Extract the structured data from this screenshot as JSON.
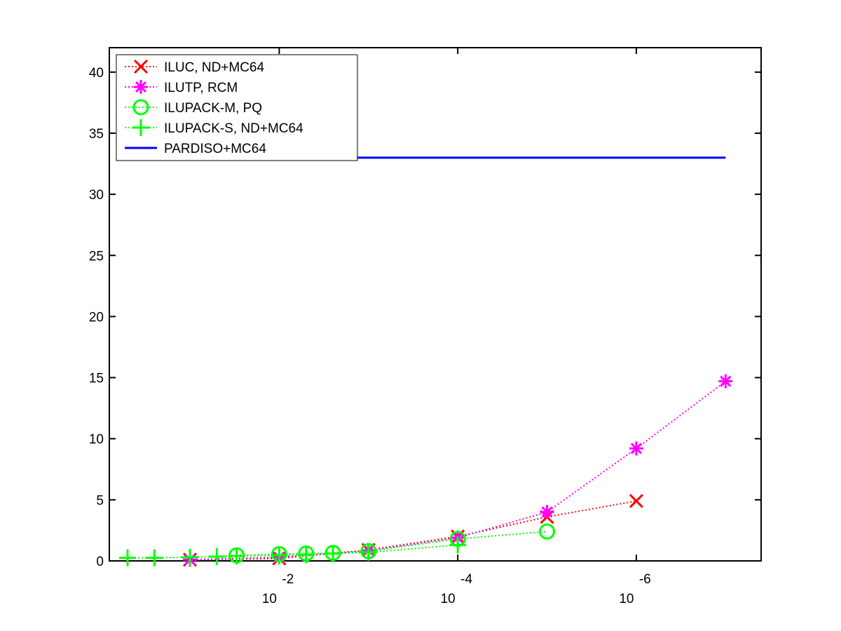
{
  "chart_data": {
    "type": "line",
    "title": "",
    "xlabel": "",
    "ylabel": "",
    "x_scale": "log-reversed",
    "xlim": [
      0.8,
      4e-08
    ],
    "ylim": [
      0,
      42
    ],
    "yticks": [
      0,
      5,
      10,
      15,
      20,
      25,
      30,
      35,
      40
    ],
    "xticks": [
      {
        "value": 0.01,
        "base": "10",
        "exponent": "-2"
      },
      {
        "value": 0.0001,
        "base": "10",
        "exponent": "-4"
      },
      {
        "value": 1e-06,
        "base": "10",
        "exponent": "-6"
      }
    ],
    "grid": false,
    "legend_position": "top-left",
    "series": [
      {
        "name": "ILUC,  ND+MC64",
        "color": "#ff0000",
        "marker": "x",
        "line": "dotted",
        "points": [
          [
            0.1,
            0.1
          ],
          [
            0.01,
            0.2
          ],
          [
            0.001,
            0.9
          ],
          [
            0.0001,
            2.0
          ],
          [
            1e-05,
            3.6
          ],
          [
            1e-06,
            4.9
          ]
        ]
      },
      {
        "name": "ILUTP, RCM",
        "color": "#ff00ff",
        "marker": "asterisk",
        "line": "dotted",
        "points": [
          [
            0.1,
            0.1
          ],
          [
            0.01,
            0.3
          ],
          [
            0.001,
            0.85
          ],
          [
            0.0001,
            1.9
          ],
          [
            1e-05,
            4.0
          ],
          [
            1e-06,
            9.2
          ],
          [
            1e-07,
            14.7
          ]
        ]
      },
      {
        "name": "ILUPACK-M, PQ",
        "color": "#00ff00",
        "marker": "circle",
        "line": "dotted",
        "points": [
          [
            0.03,
            0.45
          ],
          [
            0.01,
            0.55
          ],
          [
            0.005,
            0.6
          ],
          [
            0.0025,
            0.65
          ],
          [
            0.001,
            0.8
          ],
          [
            0.0001,
            1.8
          ],
          [
            1e-05,
            2.4
          ]
        ]
      },
      {
        "name": "ILUPACK-S, ND+MC64",
        "color": "#00ff00",
        "marker": "plus",
        "line": "dotted",
        "points": [
          [
            0.5,
            0.25
          ],
          [
            0.25,
            0.25
          ],
          [
            0.1,
            0.3
          ],
          [
            0.05,
            0.35
          ],
          [
            0.03,
            0.4
          ],
          [
            0.01,
            0.45
          ],
          [
            0.005,
            0.5
          ],
          [
            0.0025,
            0.6
          ],
          [
            0.001,
            0.7
          ],
          [
            0.0001,
            1.3
          ]
        ]
      },
      {
        "name": "PARDISO+MC64",
        "color": "#0000ff",
        "marker": "none",
        "line": "solid",
        "points": [
          [
            0.5,
            33
          ],
          [
            1e-07,
            33
          ]
        ]
      }
    ]
  }
}
